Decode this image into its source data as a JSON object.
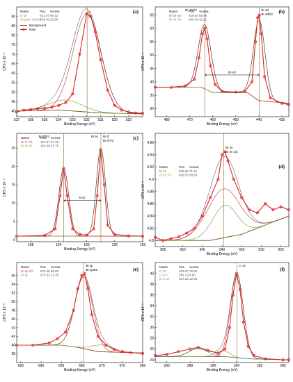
{
  "colors": {
    "raw": "#e02020",
    "background": "#7a4a16",
    "comp1": "#c84a4a",
    "comp2": "#8aa040",
    "comp3": "#4aa0b0",
    "envelope": "#333333",
    "vline": "#8a6a20"
  },
  "chart_data": [
    {
      "id": "a",
      "type": "line",
      "panel_label": "(a)",
      "xlabel": "Binding Energy (eV)",
      "ylabel": "CPS x 10⁻³",
      "xlim": [
        537,
        528
      ],
      "ylim": [
        37,
        95
      ],
      "xticks": [
        537,
        536,
        535,
        534,
        533,
        532,
        531,
        530,
        529
      ],
      "yticks": [
        40,
        45,
        50,
        55,
        60,
        65,
        70,
        75,
        80,
        85,
        90
      ],
      "table_header": [
        "Name",
        "Pos.",
        "%Area"
      ],
      "table_rows": [
        [
          "O 1s",
          "531.97",
          "89.12"
        ],
        [
          "Oxygen Defect",
          "533.49",
          "10.88"
        ]
      ],
      "legend": [
        "Background",
        "Raw"
      ],
      "peak_labels": [
        "O 1s"
      ],
      "vlines": [
        531.97
      ],
      "annotations": [],
      "background": [
        [
          537,
          40
        ],
        [
          534,
          40.5
        ],
        [
          531,
          39
        ],
        [
          528,
          38.5
        ]
      ],
      "components": [
        {
          "center": 531.97,
          "height": 52,
          "width": 1.0
        },
        {
          "center": 533.49,
          "height": 5.5,
          "width": 1.2
        }
      ],
      "raw": [
        [
          537,
          39.5
        ],
        [
          536.5,
          40.5
        ],
        [
          536,
          40.8
        ],
        [
          535.5,
          41.2
        ],
        [
          535,
          41.5
        ],
        [
          534.5,
          42
        ],
        [
          534,
          43
        ],
        [
          533.5,
          44.5
        ],
        [
          533,
          49
        ],
        [
          532.5,
          70
        ],
        [
          532,
          91.5
        ],
        [
          531.7,
          90
        ],
        [
          531.4,
          82
        ],
        [
          531,
          67
        ],
        [
          530.5,
          51
        ],
        [
          530,
          43
        ],
        [
          529.5,
          40.5
        ],
        [
          529,
          39.5
        ],
        [
          528.5,
          39
        ],
        [
          528,
          38.8
        ]
      ]
    },
    {
      "id": "b",
      "type": "line",
      "panel_label": "(b)",
      "xlabel": "Binding Energy (eV)",
      "ylabel": "CPS x 10⁻³",
      "xlim": [
        485,
        427
      ],
      "ylim": [
        27,
        68
      ],
      "xticks": [
        480,
        470,
        460,
        450,
        440,
        430
      ],
      "yticks": [
        30,
        35,
        40,
        45,
        50,
        55,
        60,
        65
      ],
      "table_header": [
        "Name",
        "Pos.",
        "%Area"
      ],
      "table_rows": [
        [
          "Bi 4d 5/2",
          "439.84",
          "56.89"
        ],
        [
          "Bi 4d 3/2",
          "463.49",
          "43.11"
        ]
      ],
      "legend": [],
      "peak_labels": [
        "Bi 4d3/2",
        "Bi 4d",
        "Bi 4d5/2"
      ],
      "vlines": [
        463.49,
        439.84
      ],
      "annotations": [
        "24 eV"
      ],
      "background": [
        [
          485,
          38
        ],
        [
          465,
          38
        ],
        [
          460,
          36
        ],
        [
          445,
          36
        ],
        [
          440,
          33
        ],
        [
          427,
          32
        ]
      ],
      "components": [
        {
          "center": 463.49,
          "height": 24,
          "width": 2.8
        },
        {
          "center": 439.84,
          "height": 30,
          "width": 2.5
        }
      ],
      "raw": [
        [
          485,
          38
        ],
        [
          478,
          38
        ],
        [
          472,
          38.5
        ],
        [
          468,
          41
        ],
        [
          466,
          49
        ],
        [
          464.5,
          58
        ],
        [
          463.5,
          60
        ],
        [
          462.5,
          56
        ],
        [
          461,
          46
        ],
        [
          459,
          39
        ],
        [
          456,
          36.5
        ],
        [
          450,
          36.2
        ],
        [
          446,
          36.5
        ],
        [
          443,
          40
        ],
        [
          441.5,
          55
        ],
        [
          440.5,
          64
        ],
        [
          439.8,
          65
        ],
        [
          439,
          58
        ],
        [
          437.5,
          42
        ],
        [
          435,
          34
        ],
        [
          430,
          32
        ],
        [
          427,
          31.5
        ]
      ]
    },
    {
      "id": "c",
      "type": "line",
      "panel_label": "(c)",
      "xlabel": "Binding Energy (eV)",
      "ylabel": "CPS x 10⁻⁴",
      "xlim": [
        170,
        152
      ],
      "ylim": [
        -0.5,
        29
      ],
      "xticks": [
        168,
        164,
        160,
        156,
        152
      ],
      "yticks": [
        0,
        5,
        10,
        15,
        20,
        25
      ],
      "table_header": [
        "Name",
        "Pos.",
        "%Area"
      ],
      "table_rows": [
        [
          "Bi 4f 7/2",
          "157.97",
          "57.25"
        ],
        [
          "Bi 4f 5/2",
          "163.28",
          "42.75"
        ]
      ],
      "legend": [],
      "peak_labels": [
        "Bi 4f5/2",
        "Bi 5s",
        "Bi 4f",
        "Bi 4f7/2"
      ],
      "vlines": [
        163.28,
        157.97
      ],
      "annotations": [
        "6 eV"
      ],
      "background": [
        [
          170,
          1
        ],
        [
          152,
          1
        ]
      ],
      "components": [
        {
          "center": 163.28,
          "height": 18.5,
          "width": 0.7
        },
        {
          "center": 157.97,
          "height": 24,
          "width": 0.65
        }
      ],
      "raw": [
        [
          170,
          1
        ],
        [
          166,
          1.2
        ],
        [
          164.5,
          3
        ],
        [
          163.8,
          12
        ],
        [
          163.3,
          19.5
        ],
        [
          162.8,
          12
        ],
        [
          162,
          3
        ],
        [
          161,
          1.5
        ],
        [
          160,
          1.3
        ],
        [
          159,
          3
        ],
        [
          158.5,
          12
        ],
        [
          158,
          24.5
        ],
        [
          157.5,
          15
        ],
        [
          157,
          4
        ],
        [
          156,
          1.5
        ],
        [
          154,
          1.1
        ],
        [
          152,
          1
        ]
      ]
    },
    {
      "id": "d",
      "type": "line",
      "panel_label": "(d)",
      "xlabel": "Binding Energy (eV)",
      "ylabel": "CPS x 10⁻³",
      "xlim": [
        957,
        923
      ],
      "ylim": [
        4.79,
        4.975
      ],
      "xticks": [
        955,
        950,
        945,
        940,
        935,
        930,
        925
      ],
      "yticks": [
        4.8,
        4.82,
        4.84,
        4.86,
        4.88,
        4.9,
        4.92,
        4.94,
        4.96
      ],
      "table_header": [
        "Name",
        "Pos.",
        "%Area"
      ],
      "table_rows": [
        [
          "Bi 4s",
          "939.60",
          "71.31"
        ],
        [
          "Bi 4s 1/2",
          "939.30",
          "28.69"
        ]
      ],
      "legend": [],
      "peak_labels": [
        "Bi 4s",
        "Bi 4s 1/2"
      ],
      "vlines": [
        939.6
      ],
      "annotations": [],
      "background": [
        [
          957,
          4.8
        ],
        [
          943,
          4.8
        ],
        [
          935,
          4.81
        ],
        [
          923,
          4.84
        ]
      ],
      "components": [
        {
          "center": 939.6,
          "height": 0.08,
          "width": 4.2
        },
        {
          "center": 939.3,
          "height": 0.053,
          "width": 3.2
        }
      ],
      "raw": [
        [
          957,
          4.805
        ],
        [
          955,
          4.8
        ],
        [
          953,
          4.803
        ],
        [
          951,
          4.806
        ],
        [
          949,
          4.812
        ],
        [
          947,
          4.82
        ],
        [
          945,
          4.84
        ],
        [
          943,
          4.87
        ],
        [
          941,
          4.9
        ],
        [
          940,
          4.94
        ],
        [
          939.3,
          4.945
        ],
        [
          938.5,
          4.93
        ],
        [
          937,
          4.9
        ],
        [
          935,
          4.87
        ],
        [
          933,
          4.85
        ],
        [
          931,
          4.845
        ],
        [
          929,
          4.86
        ],
        [
          927,
          4.85
        ],
        [
          925,
          4.855
        ],
        [
          923,
          4.85
        ]
      ]
    },
    {
      "id": "e",
      "type": "line",
      "panel_label": "(e)",
      "xlabel": "Binding Energy (eV)",
      "ylabel": "CPS x 10⁻³",
      "xlim": [
        696,
        665
      ],
      "ylim": [
        36,
        59
      ],
      "xticks": [
        695,
        690,
        685,
        680,
        675,
        670,
        665
      ],
      "yticks": [
        38,
        40,
        42,
        44,
        46,
        48,
        50,
        52,
        54,
        56
      ],
      "table_header": [
        "Name",
        "Pos.",
        "%Area"
      ],
      "table_rows": [
        [
          "Bi 4p 3/2",
          "679.48",
          "86.80"
        ],
        [
          "Bi 4p",
          "675.03",
          "13.20"
        ]
      ],
      "legend": [],
      "peak_labels": [
        "Bi 4p",
        "Bi 4p3/2"
      ],
      "vlines": [
        679.48
      ],
      "annotations": [],
      "background": [
        [
          696,
          40
        ],
        [
          685,
          40
        ],
        [
          681,
          39.5
        ],
        [
          676,
          38.5
        ],
        [
          665,
          38.2
        ]
      ],
      "components": [
        {
          "center": 679.48,
          "height": 16.5,
          "width": 2.2
        },
        {
          "center": 675.03,
          "height": 1.6,
          "width": 2.5
        }
      ],
      "raw": [
        [
          696,
          40
        ],
        [
          692,
          40
        ],
        [
          688,
          40.5
        ],
        [
          686,
          41.5
        ],
        [
          684,
          43
        ],
        [
          682,
          48
        ],
        [
          681,
          53
        ],
        [
          680,
          56
        ],
        [
          679.3,
          56.5
        ],
        [
          678.5,
          53
        ],
        [
          677.5,
          47
        ],
        [
          676,
          42
        ],
        [
          674,
          40
        ],
        [
          672,
          39
        ],
        [
          670,
          38.5
        ],
        [
          668,
          38.3
        ],
        [
          665,
          38.1
        ]
      ]
    },
    {
      "id": "f",
      "type": "line",
      "panel_label": "(f)",
      "xlabel": "Binding Energy (eV)",
      "ylabel": "CPS x 10⁻³",
      "xlim": [
        291,
        279.5
      ],
      "ylim": [
        23.5,
        42
      ],
      "xticks": [
        290,
        288,
        286,
        284,
        282,
        280
      ],
      "yticks": [
        24,
        26,
        28,
        30,
        32,
        34,
        36,
        38,
        40
      ],
      "table_header": [
        "Name",
        "Pos.",
        "%Area"
      ],
      "table_rows": [
        [
          "C 1s",
          "283.97",
          "78.60"
        ],
        [
          "C-O-C",
          "285.19",
          "8.90"
        ],
        [
          "O-C=O",
          "287.29",
          "12.50"
        ]
      ],
      "legend": [],
      "peak_labels": [
        "C 1s"
      ],
      "vlines": [
        283.97
      ],
      "annotations": [],
      "background": [
        [
          291,
          24.6
        ],
        [
          285,
          24.6
        ],
        [
          283,
          24.2
        ],
        [
          279.5,
          24
        ]
      ],
      "components": [
        {
          "center": 283.97,
          "height": 15.5,
          "width": 0.55
        },
        {
          "center": 285.19,
          "height": 1.1,
          "width": 0.6
        },
        {
          "center": 287.29,
          "height": 1.5,
          "width": 0.8
        }
      ],
      "raw": [
        [
          291,
          24.8
        ],
        [
          290,
          25
        ],
        [
          289,
          25.5
        ],
        [
          288,
          26
        ],
        [
          287.3,
          26.3
        ],
        [
          286.5,
          25.8
        ],
        [
          285.6,
          25.2
        ],
        [
          285,
          26
        ],
        [
          284.6,
          30
        ],
        [
          284.3,
          36
        ],
        [
          284,
          40
        ],
        [
          283.7,
          37
        ],
        [
          283.4,
          31
        ],
        [
          283,
          26.5
        ],
        [
          282.5,
          24.8
        ],
        [
          281.5,
          24.2
        ],
        [
          280,
          24
        ],
        [
          279.5,
          24
        ]
      ]
    }
  ]
}
